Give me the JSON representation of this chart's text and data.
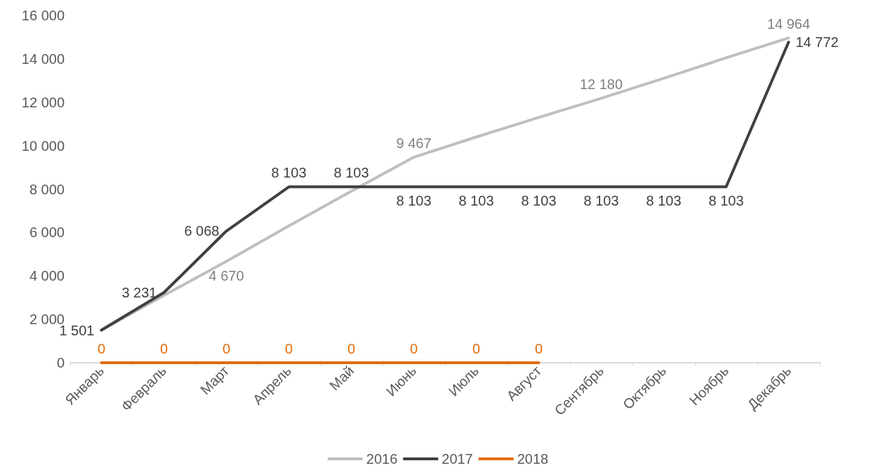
{
  "chart_data": {
    "type": "line",
    "categories": [
      "Январь",
      "Февраль",
      "Март",
      "Апрель",
      "Май",
      "Июнь",
      "Июль",
      "Август",
      "Сентябрь",
      "Октябрь",
      "Ноябрь",
      "Декабрь"
    ],
    "series": [
      {
        "name": "2016",
        "color": "#bfbfbf",
        "values": [
          1500,
          3100,
          4670,
          6300,
          7900,
          9467,
          10400,
          11300,
          12180,
          13100,
          14050,
          14964
        ],
        "value_labels": [
          null,
          null,
          "4 670",
          null,
          null,
          "9 467",
          null,
          null,
          "12 180",
          null,
          null,
          "14 964"
        ]
      },
      {
        "name": "2017",
        "color": "#404040",
        "values": [
          1501,
          3231,
          6068,
          8103,
          8103,
          8103,
          8103,
          8103,
          8103,
          8103,
          8103,
          14772
        ],
        "value_labels": [
          "1 501",
          "3 231",
          "6 068",
          "8 103",
          "8 103",
          "8 103",
          "8 103",
          "8 103",
          "8 103",
          "8 103",
          "8 103",
          "14 772"
        ]
      },
      {
        "name": "2018",
        "color": "#e36c0a",
        "values": [
          0,
          0,
          0,
          0,
          0,
          0,
          0,
          0,
          null,
          null,
          null,
          null
        ],
        "value_labels": [
          "0",
          "0",
          "0",
          "0",
          "0",
          "0",
          "0",
          "0",
          null,
          null,
          null,
          null
        ]
      }
    ],
    "ylim": [
      0,
      16000
    ],
    "yticks": [
      {
        "value": 0,
        "label": "0"
      },
      {
        "value": 2000,
        "label": "2 000"
      },
      {
        "value": 4000,
        "label": "4 000"
      },
      {
        "value": 6000,
        "label": "6 000"
      },
      {
        "value": 8000,
        "label": "8 000"
      },
      {
        "value": 10000,
        "label": "10 000"
      },
      {
        "value": 12000,
        "label": "12 000"
      },
      {
        "value": 14000,
        "label": "14 000"
      },
      {
        "value": 16000,
        "label": "16 000"
      }
    ],
    "grid": false,
    "legend": "bottom",
    "marker": "none",
    "line_style": "solid"
  }
}
